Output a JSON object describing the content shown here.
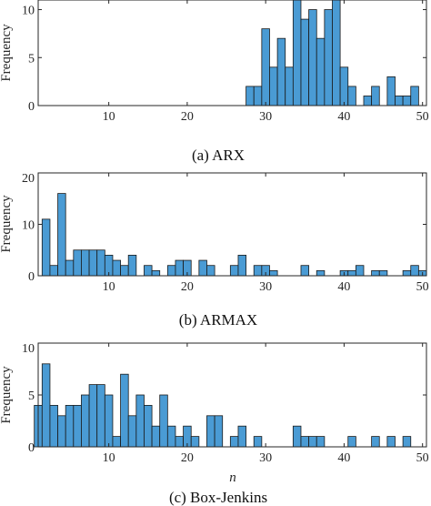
{
  "chart_data": [
    {
      "type": "bar",
      "caption": "(a) ARX",
      "ylabel": "Frequency",
      "xlabel": "",
      "xlim": [
        1,
        50.5
      ],
      "ylim": [
        0,
        11
      ],
      "xticks": [
        10,
        20,
        30,
        40,
        50
      ],
      "yticks": [
        0,
        5,
        10
      ],
      "bar_color": "#4a9bd4",
      "bins": [
        28,
        29,
        30,
        31,
        32,
        33,
        34,
        35,
        36,
        37,
        38,
        39,
        40,
        41,
        42,
        43,
        44,
        45,
        46,
        47,
        48,
        49
      ],
      "values": [
        2,
        2,
        8,
        4,
        7,
        4,
        11,
        9,
        10,
        7,
        10,
        11,
        4,
        2,
        0,
        1,
        2,
        0,
        3,
        1,
        1,
        2
      ]
    },
    {
      "type": "bar",
      "caption": "(b) ARMAX",
      "ylabel": "Frequency",
      "xlabel": "",
      "xlim": [
        1,
        50.5
      ],
      "ylim": [
        0,
        20
      ],
      "xticks": [
        10,
        20,
        30,
        40,
        50
      ],
      "yticks": [
        0,
        10,
        20
      ],
      "bar_color": "#4a9bd4",
      "bins": [
        2,
        3,
        4,
        5,
        6,
        7,
        8,
        9,
        10,
        11,
        12,
        13,
        14,
        15,
        16,
        17,
        18,
        19,
        20,
        21,
        22,
        23,
        24,
        25,
        26,
        27,
        28,
        29,
        30,
        31,
        32,
        33,
        34,
        35,
        36,
        37,
        38,
        39,
        40,
        41,
        42,
        43,
        44,
        45,
        46,
        47,
        48,
        49,
        50
      ],
      "values": [
        11,
        2,
        16,
        3,
        5,
        5,
        5,
        5,
        4,
        3,
        2,
        4,
        0,
        2,
        1,
        0,
        2,
        3,
        3,
        0,
        3,
        2,
        0,
        0,
        2,
        4,
        0,
        2,
        2,
        1,
        0,
        0,
        0,
        2,
        0,
        1,
        0,
        0,
        1,
        1,
        2,
        0,
        1,
        1,
        0,
        0,
        1,
        2,
        1
      ]
    },
    {
      "type": "bar",
      "caption": "(c) Box-Jenkins",
      "ylabel": "Frequency",
      "xlabel": "n",
      "xlim": [
        1,
        50.5
      ],
      "ylim": [
        0,
        10
      ],
      "xticks": [
        10,
        20,
        30,
        40,
        50
      ],
      "yticks": [
        0,
        5,
        10
      ],
      "bar_color": "#4a9bd4",
      "bins": [
        1,
        2,
        3,
        4,
        5,
        6,
        7,
        8,
        9,
        10,
        11,
        12,
        13,
        14,
        15,
        16,
        17,
        18,
        19,
        20,
        21,
        22,
        23,
        24,
        25,
        26,
        27,
        28,
        29,
        30,
        31,
        32,
        33,
        34,
        35,
        36,
        37,
        38,
        39,
        40,
        41,
        42,
        43,
        44,
        45,
        46,
        47,
        48,
        49,
        50
      ],
      "values": [
        4,
        8,
        4,
        3,
        4,
        4,
        5,
        6,
        6,
        5,
        1,
        7,
        3,
        5,
        4,
        2,
        5,
        2,
        1,
        2,
        1,
        0,
        3,
        3,
        0,
        1,
        2,
        0,
        1,
        0,
        0,
        0,
        0,
        2,
        1,
        1,
        1,
        0,
        0,
        0,
        1,
        0,
        0,
        1,
        0,
        1,
        0,
        1,
        0,
        0
      ]
    }
  ]
}
